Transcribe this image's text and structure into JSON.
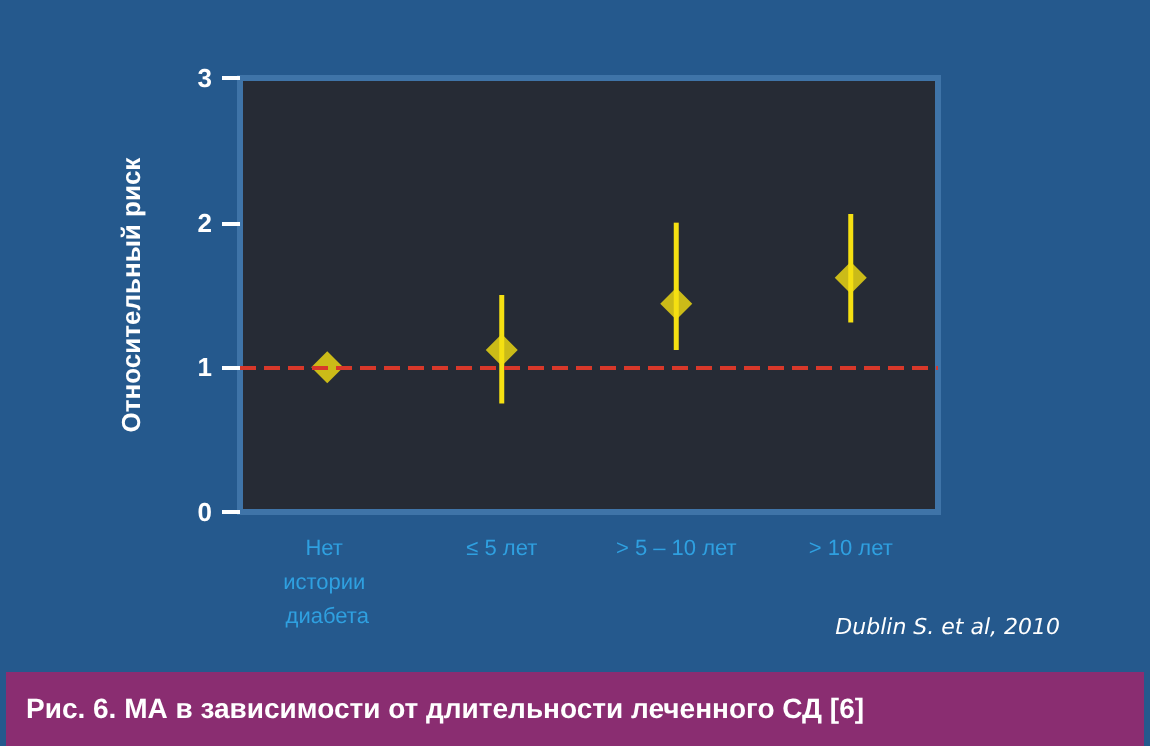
{
  "chart_data": {
    "type": "scatter",
    "title": "Рис. 6. МА в зависимости от длительности леченного СД [6]",
    "ylabel": "Относительный риск",
    "annotations": [
      "Dublin S. et al, 2010"
    ],
    "categories": [
      "Нет истории диабета",
      "≤ 5 лет",
      "> 5 – 10 лет",
      "> 10 лет"
    ],
    "series": [
      {
        "color": "#f5e012",
        "values": [
          1.0,
          1.12,
          1.44,
          1.62
        ],
        "errors": [
          null,
          [
            0.75,
            1.5
          ],
          [
            1.12,
            2.0
          ],
          [
            1.31,
            2.06
          ]
        ]
      }
    ],
    "ylim": [
      0,
      3
    ],
    "yticks": [
      0,
      1,
      2,
      3
    ],
    "grid": false,
    "marker": "diamond",
    "ref_lines": [
      {
        "axis": "y",
        "value": 1,
        "color": "#d8382a",
        "line_style": "dashed"
      }
    ]
  }
}
